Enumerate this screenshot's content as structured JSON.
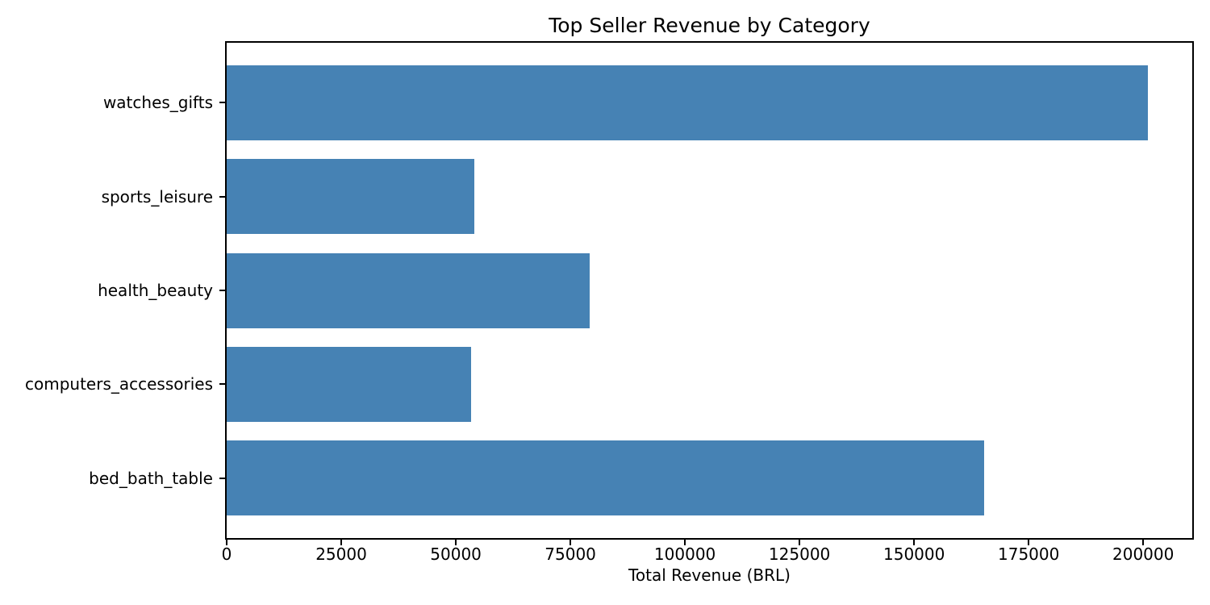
{
  "figure": {
    "background": "#ffffff",
    "text_color": "#000000",
    "spine_color": "#000000"
  },
  "chart_data": {
    "type": "bar",
    "orientation": "horizontal",
    "title": "Top Seller Revenue by Category",
    "xlabel": "Total Revenue (BRL)",
    "ylabel": "",
    "categories": [
      "watches_gifts",
      "sports_leisure",
      "health_beauty",
      "computers_accessories",
      "bed_bath_table"
    ],
    "values": [
      201000,
      54100,
      79200,
      53400,
      165200
    ],
    "bar_color": "#4682B4",
    "xlim": [
      0,
      210700
    ],
    "xticks": [
      0,
      25000,
      50000,
      75000,
      100000,
      125000,
      150000,
      175000,
      200000
    ],
    "xtick_labels": [
      "0",
      "25000",
      "50000",
      "75000",
      "100000",
      "125000",
      "150000",
      "175000",
      "200000"
    ],
    "grid": false,
    "legend": "none"
  }
}
